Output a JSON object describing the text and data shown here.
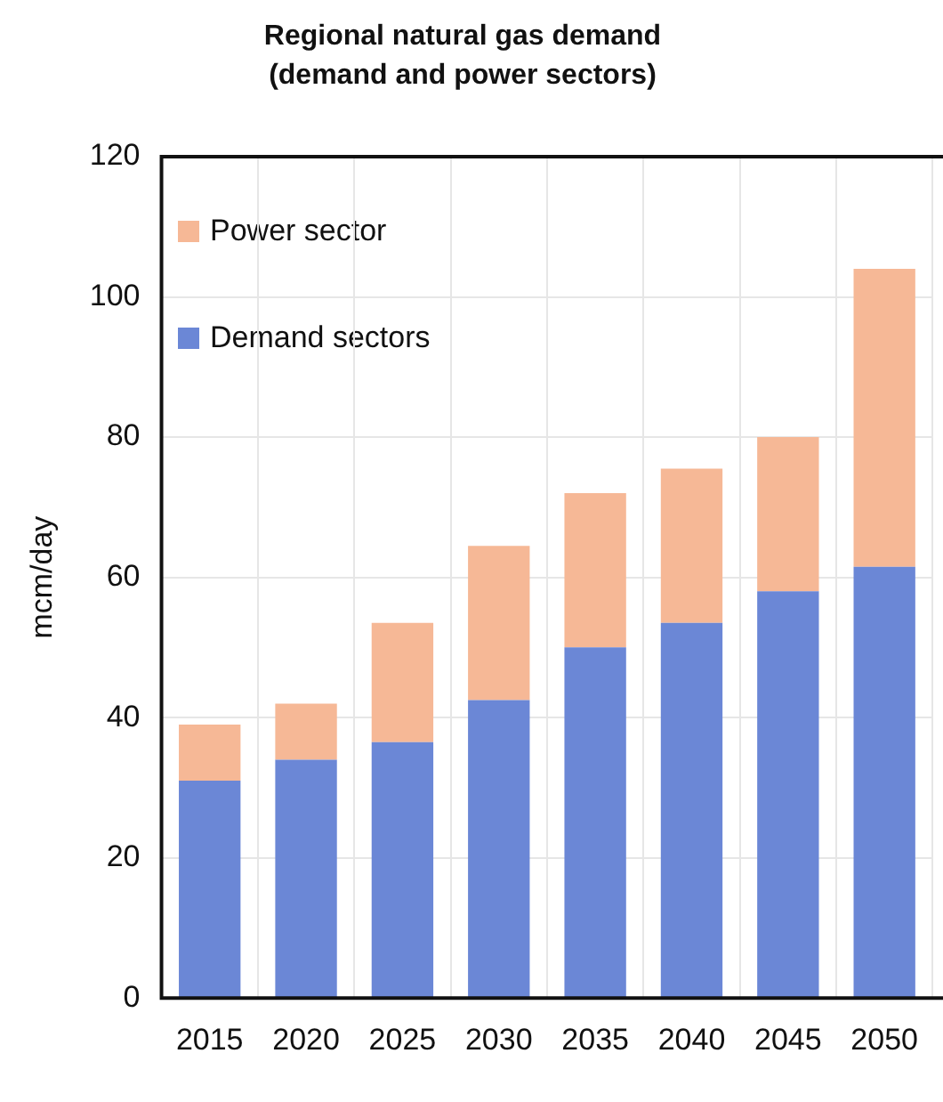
{
  "chart_data": {
    "type": "bar",
    "title": "Regional natural gas demand (demand and power sectors)",
    "ylabel": "mcm/day",
    "categories": [
      "2015",
      "2020",
      "2025",
      "2030",
      "2035",
      "2040",
      "2045",
      "2050"
    ],
    "series": [
      {
        "name": "Demand sectors",
        "color": "#6b87d6",
        "values": [
          31,
          34,
          36.5,
          42.5,
          50,
          53.5,
          58,
          61.5
        ]
      },
      {
        "name": "Power sector",
        "color": "#f6b896",
        "values": [
          8,
          8,
          17,
          22,
          22,
          22,
          22,
          42.5
        ]
      }
    ],
    "stacked": true,
    "ylim": [
      0,
      120
    ],
    "yticks": [
      0,
      20,
      40,
      60,
      80,
      100,
      120
    ],
    "grid": true,
    "legend": "top left"
  }
}
